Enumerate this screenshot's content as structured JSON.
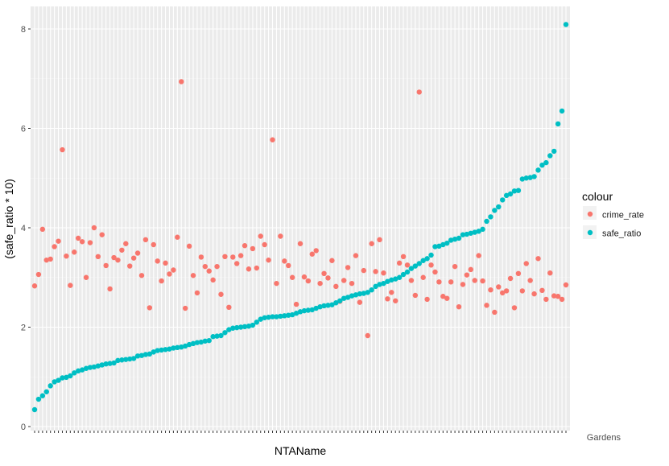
{
  "chart_data": {
    "type": "scatter",
    "xlabel": "NTAName",
    "ylabel": "(safe_ratio * 10)",
    "ylim": [
      0,
      8.2
    ],
    "yticks": [
      0,
      2,
      4,
      6,
      8
    ],
    "x_tick_labels_visible": [
      "Gardens"
    ],
    "grid": true,
    "legend": {
      "title": "colour",
      "placement": "right",
      "entries": [
        {
          "name": "crime_rate",
          "color": "#F8766D"
        },
        {
          "name": "safe_ratio",
          "color": "#00BFC4"
        }
      ]
    },
    "series": [
      {
        "name": "crime_rate",
        "color": "#F8766D",
        "values": [
          2.83,
          3.06,
          3.97,
          3.35,
          3.37,
          3.62,
          3.73,
          5.57,
          3.43,
          2.84,
          3.51,
          3.79,
          3.72,
          3.0,
          3.7,
          4.0,
          3.42,
          3.86,
          3.24,
          2.77,
          3.4,
          3.35,
          3.55,
          3.68,
          3.23,
          3.39,
          3.49,
          3.04,
          3.76,
          2.39,
          3.66,
          3.33,
          2.93,
          3.29,
          3.07,
          3.15,
          3.81,
          6.94,
          2.38,
          3.63,
          3.04,
          2.69,
          3.41,
          3.22,
          3.13,
          2.95,
          3.22,
          2.66,
          3.42,
          2.4,
          3.41,
          3.28,
          3.44,
          3.64,
          3.17,
          3.58,
          3.19,
          3.83,
          3.66,
          3.35,
          5.77,
          2.88,
          3.83,
          3.33,
          3.24,
          3.0,
          2.46,
          3.68,
          3.01,
          2.93,
          3.47,
          3.54,
          2.88,
          3.08,
          2.99,
          3.34,
          2.82,
          2.52,
          2.94,
          3.2,
          2.88,
          3.44,
          2.5,
          3.14,
          1.83,
          3.68,
          3.12,
          3.76,
          3.09,
          2.57,
          2.7,
          2.53,
          3.29,
          3.42,
          3.25,
          2.94,
          2.64,
          6.73,
          3.0,
          2.56,
          3.25,
          3.11,
          2.91,
          2.62,
          2.58,
          2.91,
          3.22,
          2.41,
          2.86,
          3.05,
          3.16,
          2.94,
          3.44,
          2.93,
          2.44,
          2.75,
          2.3,
          2.81,
          2.69,
          2.73,
          2.98,
          2.39,
          3.08,
          2.73,
          3.28,
          2.94,
          2.67,
          3.38,
          2.74,
          2.56,
          3.09,
          2.63,
          2.62,
          2.56,
          2.85
        ]
      },
      {
        "name": "safe_ratio",
        "color": "#00BFC4",
        "values": [
          0.34,
          0.55,
          0.62,
          0.7,
          0.82,
          0.9,
          0.93,
          0.98,
          0.99,
          1.02,
          1.08,
          1.12,
          1.14,
          1.17,
          1.19,
          1.2,
          1.22,
          1.24,
          1.26,
          1.27,
          1.28,
          1.33,
          1.34,
          1.35,
          1.36,
          1.37,
          1.42,
          1.43,
          1.45,
          1.46,
          1.5,
          1.53,
          1.54,
          1.55,
          1.56,
          1.58,
          1.59,
          1.6,
          1.62,
          1.65,
          1.67,
          1.69,
          1.7,
          1.72,
          1.73,
          1.81,
          1.82,
          1.83,
          1.89,
          1.95,
          1.98,
          1.99,
          2.0,
          2.01,
          2.02,
          2.04,
          2.1,
          2.16,
          2.19,
          2.2,
          2.21,
          2.21,
          2.22,
          2.23,
          2.24,
          2.25,
          2.28,
          2.31,
          2.33,
          2.34,
          2.35,
          2.38,
          2.41,
          2.43,
          2.44,
          2.45,
          2.49,
          2.53,
          2.58,
          2.6,
          2.63,
          2.65,
          2.67,
          2.68,
          2.7,
          2.75,
          2.82,
          2.86,
          2.88,
          2.92,
          2.95,
          2.97,
          3.0,
          3.06,
          3.11,
          3.18,
          3.23,
          3.28,
          3.34,
          3.38,
          3.45,
          3.62,
          3.63,
          3.66,
          3.69,
          3.75,
          3.77,
          3.79,
          3.86,
          3.87,
          3.89,
          3.91,
          3.93,
          3.97,
          4.13,
          4.22,
          4.35,
          4.42,
          4.56,
          4.65,
          4.68,
          4.74,
          4.75,
          4.98,
          5.0,
          5.01,
          5.03,
          5.16,
          5.26,
          5.31,
          5.45,
          5.54,
          6.09,
          6.35,
          8.09
        ]
      }
    ]
  }
}
